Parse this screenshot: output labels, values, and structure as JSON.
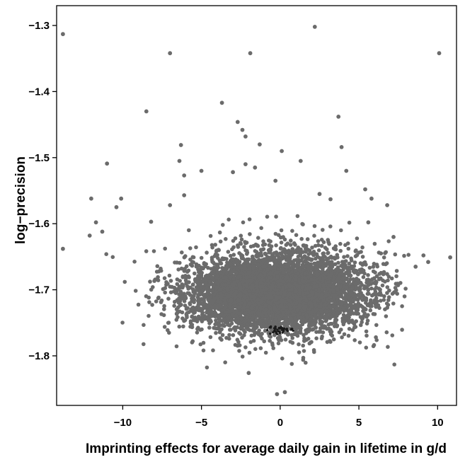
{
  "chart_data": {
    "type": "scatter",
    "xlabel": "Imprinting effects for average daily gain in lifetime in g/d",
    "ylabel": "log−precision",
    "xlim": [
      -14.2,
      11.2
    ],
    "ylim": [
      -1.875,
      -1.27
    ],
    "xticks": [
      -10,
      -5,
      0,
      5,
      10
    ],
    "xtick_labels": [
      "−10",
      "−5",
      "0",
      "5",
      "10"
    ],
    "yticks": [
      -1.3,
      -1.4,
      -1.5,
      -1.6,
      -1.7,
      -1.8
    ],
    "ytick_labels": [
      "−1.3",
      "−1.4",
      "−1.5",
      "−1.6",
      "−1.7",
      "−1.8"
    ],
    "grid": false,
    "legend": "none",
    "point_color": "#6b6b6b",
    "center_point_color": "#1a1a1a",
    "dense_cluster": {
      "description": "thousands of overlapping points",
      "x_range": [
        -10.5,
        7.5
      ],
      "y_range": [
        -1.82,
        -1.62
      ],
      "center": [
        0.0,
        -1.705
      ],
      "densest_point": [
        0.0,
        -1.76
      ]
    },
    "outliers": [
      {
        "x": -13.8,
        "y": -1.313
      },
      {
        "x": -7.0,
        "y": -1.342
      },
      {
        "x": -1.9,
        "y": -1.342
      },
      {
        "x": 2.2,
        "y": -1.302
      },
      {
        "x": 10.1,
        "y": -1.342
      },
      {
        "x": -8.5,
        "y": -1.43
      },
      {
        "x": -3.7,
        "y": -1.417
      },
      {
        "x": 3.7,
        "y": -1.438
      },
      {
        "x": -2.7,
        "y": -1.446
      },
      {
        "x": -2.4,
        "y": -1.458
      },
      {
        "x": -2.2,
        "y": -1.468
      },
      {
        "x": -1.3,
        "y": -1.48
      },
      {
        "x": 3.9,
        "y": -1.484
      },
      {
        "x": 0.1,
        "y": -1.49
      },
      {
        "x": -11.0,
        "y": -1.509
      },
      {
        "x": -6.3,
        "y": -1.481
      },
      {
        "x": -6.4,
        "y": -1.505
      },
      {
        "x": -2.2,
        "y": -1.51
      },
      {
        "x": 1.3,
        "y": -1.505
      },
      {
        "x": -1.6,
        "y": -1.515
      },
      {
        "x": -5.0,
        "y": -1.52
      },
      {
        "x": 4.2,
        "y": -1.52
      },
      {
        "x": -3.0,
        "y": -1.522
      },
      {
        "x": -0.3,
        "y": -1.535
      },
      {
        "x": -6.1,
        "y": -1.527
      },
      {
        "x": 5.4,
        "y": -1.548
      },
      {
        "x": -13.8,
        "y": -1.638
      },
      {
        "x": -12.0,
        "y": -1.562
      },
      {
        "x": -11.7,
        "y": -1.598
      },
      {
        "x": -12.1,
        "y": -1.618
      },
      {
        "x": -11.3,
        "y": -1.612
      },
      {
        "x": -10.4,
        "y": -1.575
      },
      {
        "x": -10.1,
        "y": -1.562
      },
      {
        "x": -8.2,
        "y": -1.597
      },
      {
        "x": -7.0,
        "y": -1.572
      },
      {
        "x": -6.1,
        "y": -1.557
      },
      {
        "x": 2.5,
        "y": -1.555
      },
      {
        "x": 3.2,
        "y": -1.563
      },
      {
        "x": 5.8,
        "y": -1.562
      },
      {
        "x": 5.6,
        "y": -1.598
      },
      {
        "x": 6.8,
        "y": -1.572
      },
      {
        "x": 7.2,
        "y": -1.62
      },
      {
        "x": 9.1,
        "y": -1.648
      },
      {
        "x": 9.4,
        "y": -1.658
      },
      {
        "x": 10.8,
        "y": -1.651
      },
      {
        "x": 8.6,
        "y": -1.665
      },
      {
        "x": -0.2,
        "y": -1.858
      },
      {
        "x": 0.3,
        "y": -1.855
      },
      {
        "x": -2.0,
        "y": -1.826
      }
    ]
  }
}
